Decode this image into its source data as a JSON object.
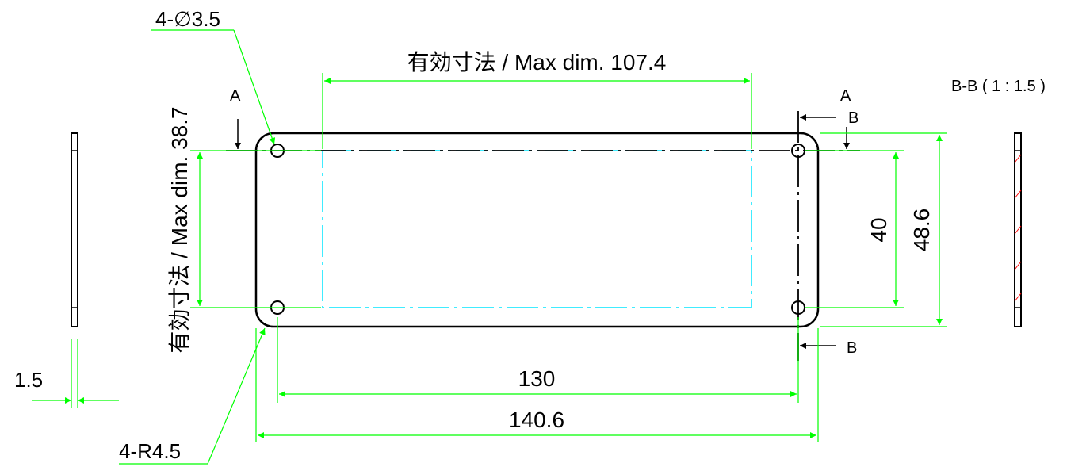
{
  "labels": {
    "holes": "4-∅3.5",
    "corner_radius": "4-R4.5",
    "max_width": "有効寸法 / Max dim. 107.4",
    "max_height": "有効寸法 / Max dim. 38.7",
    "dim_130": "130",
    "dim_140_6": "140.6",
    "dim_40": "40",
    "dim_48_6": "48.6",
    "dim_thickness": "1.5",
    "section_title": "B-B ( 1 : 1.5 )",
    "section_a": "A",
    "section_b": "B"
  },
  "colors": {
    "outline": "#000000",
    "dimension": "#00ff00",
    "centerline": "#00e5ff",
    "hatch": "#ff0000"
  }
}
